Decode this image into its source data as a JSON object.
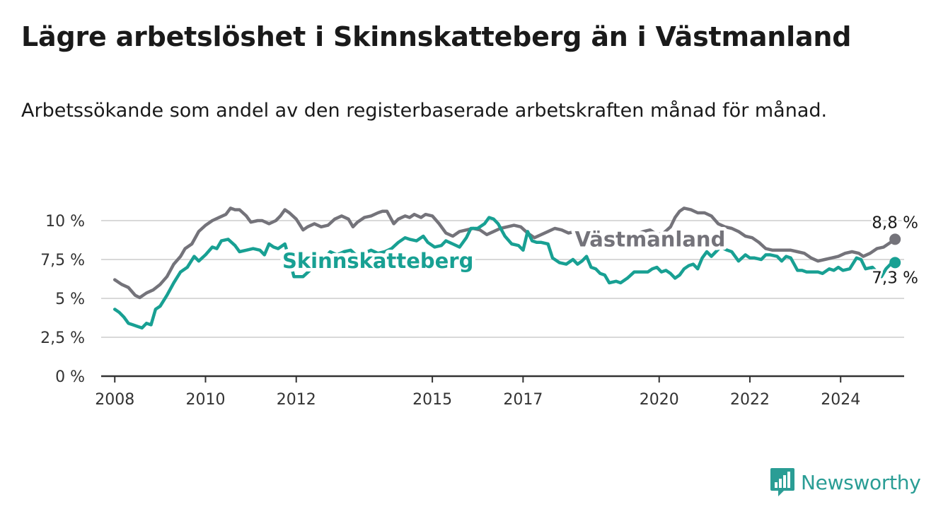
{
  "header": {
    "title": "Lägre arbetslöshet i Skinnskatteberg än i Västmanland",
    "subtitle": "Arbetssökande som andel av den registerbaserade arbetskraften månad för månad."
  },
  "brand": {
    "name": "Newsworthy",
    "icon": "bar-chart-logo-icon",
    "color": "#2a9d95"
  },
  "chart_data": {
    "type": "line",
    "title": "Lägre arbetslöshet i Skinnskatteberg än i Västmanland",
    "subtitle": "Arbetssökande som andel av den registerbaserade arbetskraften månad för månad.",
    "xlabel": "",
    "ylabel": "",
    "xlim": [
      2007.7,
      2025.4
    ],
    "ylim": [
      0,
      10
    ],
    "x_ticks": [
      2008,
      2010,
      2012,
      2015,
      2017,
      2020,
      2022,
      2024
    ],
    "y_ticks": [
      {
        "value": 0,
        "label": "0 %"
      },
      {
        "value": 2.5,
        "label": "2,5 %"
      },
      {
        "value": 5,
        "label": "5 %"
      },
      {
        "value": 7.5,
        "label": "7,5 %"
      },
      {
        "value": 10,
        "label": "10 %"
      }
    ],
    "grid": true,
    "legend": "inline labels",
    "series": [
      {
        "name": "Västmanland",
        "color": "#74737a",
        "end_label": "8,8 %",
        "points": [
          [
            2008.0,
            6.2
          ],
          [
            2008.15,
            5.9
          ],
          [
            2008.3,
            5.7
          ],
          [
            2008.45,
            5.2
          ],
          [
            2008.55,
            5.05
          ],
          [
            2008.7,
            5.35
          ],
          [
            2008.85,
            5.55
          ],
          [
            2009.0,
            5.9
          ],
          [
            2009.15,
            6.4
          ],
          [
            2009.3,
            7.2
          ],
          [
            2009.45,
            7.7
          ],
          [
            2009.55,
            8.2
          ],
          [
            2009.7,
            8.5
          ],
          [
            2009.85,
            9.3
          ],
          [
            2010.0,
            9.7
          ],
          [
            2010.15,
            10.0
          ],
          [
            2010.3,
            10.2
          ],
          [
            2010.45,
            10.4
          ],
          [
            2010.55,
            10.8
          ],
          [
            2010.65,
            10.7
          ],
          [
            2010.75,
            10.7
          ],
          [
            2010.9,
            10.3
          ],
          [
            2011.0,
            9.9
          ],
          [
            2011.15,
            10.0
          ],
          [
            2011.25,
            10.0
          ],
          [
            2011.4,
            9.8
          ],
          [
            2011.55,
            10.0
          ],
          [
            2011.65,
            10.3
          ],
          [
            2011.75,
            10.7
          ],
          [
            2011.85,
            10.5
          ],
          [
            2012.0,
            10.1
          ],
          [
            2012.15,
            9.4
          ],
          [
            2012.25,
            9.6
          ],
          [
            2012.4,
            9.8
          ],
          [
            2012.55,
            9.6
          ],
          [
            2012.7,
            9.7
          ],
          [
            2012.85,
            10.1
          ],
          [
            2013.0,
            10.3
          ],
          [
            2013.15,
            10.1
          ],
          [
            2013.25,
            9.6
          ],
          [
            2013.35,
            9.9
          ],
          [
            2013.5,
            10.2
          ],
          [
            2013.65,
            10.3
          ],
          [
            2013.8,
            10.5
          ],
          [
            2013.9,
            10.6
          ],
          [
            2014.0,
            10.6
          ],
          [
            2014.15,
            9.8
          ],
          [
            2014.25,
            10.1
          ],
          [
            2014.4,
            10.3
          ],
          [
            2014.5,
            10.2
          ],
          [
            2014.6,
            10.4
          ],
          [
            2014.75,
            10.2
          ],
          [
            2014.85,
            10.4
          ],
          [
            2015.0,
            10.3
          ],
          [
            2015.15,
            9.8
          ],
          [
            2015.3,
            9.2
          ],
          [
            2015.45,
            9.0
          ],
          [
            2015.6,
            9.3
          ],
          [
            2015.75,
            9.4
          ],
          [
            2015.9,
            9.5
          ],
          [
            2016.05,
            9.4
          ],
          [
            2016.2,
            9.1
          ],
          [
            2016.35,
            9.3
          ],
          [
            2016.5,
            9.5
          ],
          [
            2016.65,
            9.6
          ],
          [
            2016.8,
            9.7
          ],
          [
            2016.95,
            9.6
          ],
          [
            2017.1,
            9.2
          ],
          [
            2017.25,
            8.9
          ],
          [
            2017.4,
            9.1
          ],
          [
            2017.55,
            9.3
          ],
          [
            2017.7,
            9.5
          ],
          [
            2017.85,
            9.4
          ],
          [
            2018.0,
            9.2
          ],
          [
            2018.15,
            9.3
          ],
          [
            2018.3,
            9.2
          ],
          [
            2018.45,
            9.0
          ],
          [
            2018.6,
            9.1
          ],
          [
            2018.75,
            8.9
          ],
          [
            2018.9,
            8.8
          ],
          [
            2019.05,
            8.9
          ],
          [
            2019.2,
            9.2
          ],
          [
            2019.35,
            9.0
          ],
          [
            2019.5,
            9.1
          ],
          [
            2019.65,
            9.3
          ],
          [
            2019.8,
            9.4
          ],
          [
            2019.95,
            9.1
          ],
          [
            2020.1,
            9.2
          ],
          [
            2020.25,
            9.6
          ],
          [
            2020.35,
            10.2
          ],
          [
            2020.45,
            10.6
          ],
          [
            2020.55,
            10.8
          ],
          [
            2020.7,
            10.7
          ],
          [
            2020.85,
            10.5
          ],
          [
            2021.0,
            10.5
          ],
          [
            2021.15,
            10.3
          ],
          [
            2021.3,
            9.8
          ],
          [
            2021.45,
            9.6
          ],
          [
            2021.6,
            9.5
          ],
          [
            2021.75,
            9.3
          ],
          [
            2021.9,
            9.0
          ],
          [
            2022.05,
            8.9
          ],
          [
            2022.2,
            8.6
          ],
          [
            2022.35,
            8.2
          ],
          [
            2022.5,
            8.1
          ],
          [
            2022.7,
            8.1
          ],
          [
            2022.9,
            8.1
          ],
          [
            2023.05,
            8.0
          ],
          [
            2023.2,
            7.9
          ],
          [
            2023.35,
            7.6
          ],
          [
            2023.5,
            7.4
          ],
          [
            2023.65,
            7.5
          ],
          [
            2023.8,
            7.6
          ],
          [
            2023.95,
            7.7
          ],
          [
            2024.1,
            7.9
          ],
          [
            2024.25,
            8.0
          ],
          [
            2024.4,
            7.9
          ],
          [
            2024.5,
            7.7
          ],
          [
            2024.65,
            7.9
          ],
          [
            2024.8,
            8.2
          ],
          [
            2024.95,
            8.3
          ],
          [
            2025.1,
            8.6
          ],
          [
            2025.2,
            8.8
          ]
        ]
      },
      {
        "name": "Skinnskatteberg",
        "color": "#18a093",
        "end_label": "7,3 %",
        "points": [
          [
            2008.0,
            4.3
          ],
          [
            2008.1,
            4.1
          ],
          [
            2008.2,
            3.8
          ],
          [
            2008.3,
            3.4
          ],
          [
            2008.4,
            3.3
          ],
          [
            2008.5,
            3.2
          ],
          [
            2008.6,
            3.1
          ],
          [
            2008.7,
            3.4
          ],
          [
            2008.8,
            3.3
          ],
          [
            2008.9,
            4.3
          ],
          [
            2009.0,
            4.5
          ],
          [
            2009.15,
            5.2
          ],
          [
            2009.3,
            6.0
          ],
          [
            2009.45,
            6.7
          ],
          [
            2009.6,
            7.0
          ],
          [
            2009.75,
            7.7
          ],
          [
            2009.85,
            7.4
          ],
          [
            2010.0,
            7.8
          ],
          [
            2010.15,
            8.3
          ],
          [
            2010.25,
            8.2
          ],
          [
            2010.35,
            8.7
          ],
          [
            2010.5,
            8.8
          ],
          [
            2010.65,
            8.4
          ],
          [
            2010.75,
            8.0
          ],
          [
            2010.9,
            8.1
          ],
          [
            2011.05,
            8.2
          ],
          [
            2011.2,
            8.1
          ],
          [
            2011.3,
            7.8
          ],
          [
            2011.4,
            8.5
          ],
          [
            2011.5,
            8.3
          ],
          [
            2011.6,
            8.2
          ],
          [
            2011.75,
            8.5
          ],
          [
            2011.85,
            7.5
          ],
          [
            2011.95,
            6.4
          ],
          [
            2012.15,
            6.4
          ],
          [
            2012.3,
            6.8
          ],
          [
            2012.45,
            7.3
          ],
          [
            2012.6,
            7.5
          ],
          [
            2012.75,
            8.0
          ],
          [
            2012.9,
            7.8
          ],
          [
            2013.05,
            8.0
          ],
          [
            2013.2,
            8.1
          ],
          [
            2013.35,
            7.7
          ],
          [
            2013.5,
            7.9
          ],
          [
            2013.65,
            8.1
          ],
          [
            2013.8,
            7.9
          ],
          [
            2013.95,
            8.0
          ],
          [
            2014.1,
            8.2
          ],
          [
            2014.25,
            8.6
          ],
          [
            2014.4,
            8.9
          ],
          [
            2014.5,
            8.8
          ],
          [
            2014.65,
            8.7
          ],
          [
            2014.8,
            9.0
          ],
          [
            2014.9,
            8.6
          ],
          [
            2015.05,
            8.3
          ],
          [
            2015.2,
            8.4
          ],
          [
            2015.3,
            8.7
          ],
          [
            2015.45,
            8.5
          ],
          [
            2015.6,
            8.3
          ],
          [
            2015.75,
            8.9
          ],
          [
            2015.85,
            9.5
          ],
          [
            2016.0,
            9.5
          ],
          [
            2016.15,
            9.8
          ],
          [
            2016.25,
            10.2
          ],
          [
            2016.35,
            10.1
          ],
          [
            2016.45,
            9.8
          ],
          [
            2016.6,
            9.0
          ],
          [
            2016.75,
            8.5
          ],
          [
            2016.9,
            8.4
          ],
          [
            2017.0,
            8.1
          ],
          [
            2017.1,
            9.3
          ],
          [
            2017.2,
            8.7
          ],
          [
            2017.3,
            8.6
          ],
          [
            2017.4,
            8.6
          ],
          [
            2017.55,
            8.5
          ],
          [
            2017.65,
            7.6
          ],
          [
            2017.8,
            7.3
          ],
          [
            2017.95,
            7.2
          ],
          [
            2018.1,
            7.5
          ],
          [
            2018.2,
            7.2
          ],
          [
            2018.3,
            7.4
          ],
          [
            2018.4,
            7.7
          ],
          [
            2018.5,
            7.0
          ],
          [
            2018.6,
            6.9
          ],
          [
            2018.7,
            6.6
          ],
          [
            2018.8,
            6.5
          ],
          [
            2018.9,
            6.0
          ],
          [
            2019.05,
            6.1
          ],
          [
            2019.15,
            6.0
          ],
          [
            2019.3,
            6.3
          ],
          [
            2019.45,
            6.7
          ],
          [
            2019.6,
            6.7
          ],
          [
            2019.75,
            6.7
          ],
          [
            2019.85,
            6.9
          ],
          [
            2019.95,
            7.0
          ],
          [
            2020.05,
            6.7
          ],
          [
            2020.15,
            6.8
          ],
          [
            2020.25,
            6.6
          ],
          [
            2020.35,
            6.3
          ],
          [
            2020.45,
            6.5
          ],
          [
            2020.55,
            6.9
          ],
          [
            2020.65,
            7.1
          ],
          [
            2020.75,
            7.2
          ],
          [
            2020.85,
            6.9
          ],
          [
            2020.95,
            7.6
          ],
          [
            2021.05,
            8.0
          ],
          [
            2021.15,
            7.7
          ],
          [
            2021.25,
            8.0
          ],
          [
            2021.35,
            8.3
          ],
          [
            2021.5,
            8.1
          ],
          [
            2021.6,
            8.0
          ],
          [
            2021.75,
            7.4
          ],
          [
            2021.9,
            7.8
          ],
          [
            2022.0,
            7.6
          ],
          [
            2022.1,
            7.6
          ],
          [
            2022.25,
            7.5
          ],
          [
            2022.35,
            7.8
          ],
          [
            2022.45,
            7.8
          ],
          [
            2022.6,
            7.7
          ],
          [
            2022.7,
            7.4
          ],
          [
            2022.8,
            7.7
          ],
          [
            2022.9,
            7.6
          ],
          [
            2023.05,
            6.8
          ],
          [
            2023.15,
            6.8
          ],
          [
            2023.25,
            6.7
          ],
          [
            2023.35,
            6.7
          ],
          [
            2023.5,
            6.7
          ],
          [
            2023.6,
            6.6
          ],
          [
            2023.75,
            6.9
          ],
          [
            2023.85,
            6.8
          ],
          [
            2023.95,
            7.0
          ],
          [
            2024.05,
            6.8
          ],
          [
            2024.2,
            6.9
          ],
          [
            2024.35,
            7.6
          ],
          [
            2024.45,
            7.5
          ],
          [
            2024.55,
            6.9
          ],
          [
            2024.7,
            7.0
          ],
          [
            2024.8,
            6.7
          ],
          [
            2024.9,
            6.4
          ],
          [
            2025.0,
            6.9
          ],
          [
            2025.1,
            7.2
          ],
          [
            2025.2,
            7.3
          ]
        ]
      }
    ]
  }
}
